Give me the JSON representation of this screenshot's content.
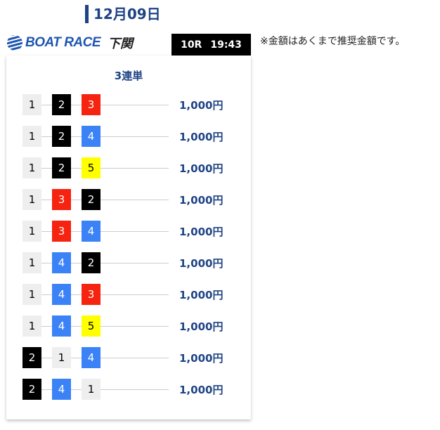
{
  "header": {
    "date": "12月09日",
    "logo_text": "BOAT RACE",
    "logo_place": "下関",
    "race": "10R",
    "time": "19:43",
    "note": "※金額はあくまで推奨金額です。"
  },
  "card": {
    "title": "3連単"
  },
  "boat_colors": {
    "1": {
      "bg": "#eeeeee",
      "fg": "#000000"
    },
    "2": {
      "bg": "#000000",
      "fg": "#ffffff"
    },
    "3": {
      "bg": "#f5230f",
      "fg": "#ffffff"
    },
    "4": {
      "bg": "#3b82f6",
      "fg": "#ffffff"
    },
    "5": {
      "bg": "#ffff00",
      "fg": "#000000"
    }
  },
  "bets": [
    {
      "combo": [
        "1",
        "2",
        "3"
      ],
      "amount": "1,000円"
    },
    {
      "combo": [
        "1",
        "2",
        "4"
      ],
      "amount": "1,000円"
    },
    {
      "combo": [
        "1",
        "2",
        "5"
      ],
      "amount": "1,000円"
    },
    {
      "combo": [
        "1",
        "3",
        "2"
      ],
      "amount": "1,000円"
    },
    {
      "combo": [
        "1",
        "3",
        "4"
      ],
      "amount": "1,000円"
    },
    {
      "combo": [
        "1",
        "4",
        "2"
      ],
      "amount": "1,000円"
    },
    {
      "combo": [
        "1",
        "4",
        "3"
      ],
      "amount": "1,000円"
    },
    {
      "combo": [
        "1",
        "4",
        "5"
      ],
      "amount": "1,000円"
    },
    {
      "combo": [
        "2",
        "1",
        "4"
      ],
      "amount": "1,000円"
    },
    {
      "combo": [
        "2",
        "4",
        "1"
      ],
      "amount": "1,000円"
    }
  ]
}
